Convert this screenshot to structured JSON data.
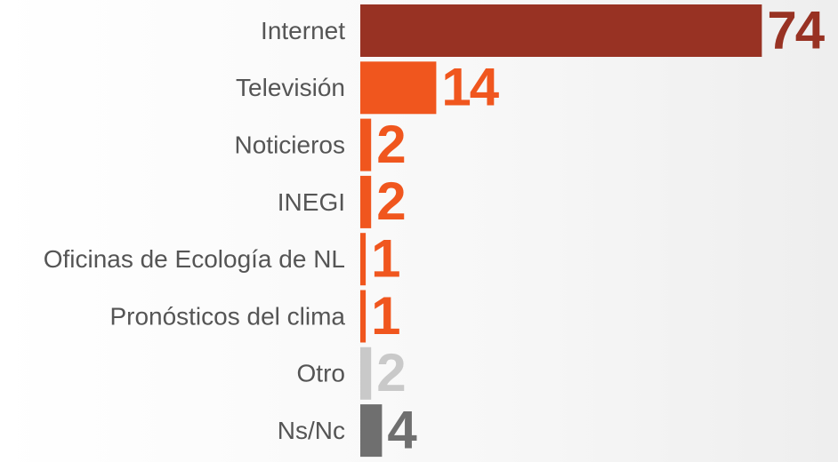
{
  "chart_data": {
    "type": "bar",
    "orientation": "horizontal",
    "categories": [
      "Internet",
      "Televisión",
      "Noticieros",
      "INEGI",
      "Oficinas de Ecología de NL",
      "Pronósticos del clima",
      "Otro",
      "Ns/Nc"
    ],
    "values": [
      74,
      14,
      2,
      2,
      1,
      1,
      2,
      4
    ],
    "colors": [
      "#983223",
      "#f0561e",
      "#f0561e",
      "#f0561e",
      "#f0561e",
      "#f0561e",
      "#c9c9c9",
      "#6f6f6f"
    ]
  }
}
